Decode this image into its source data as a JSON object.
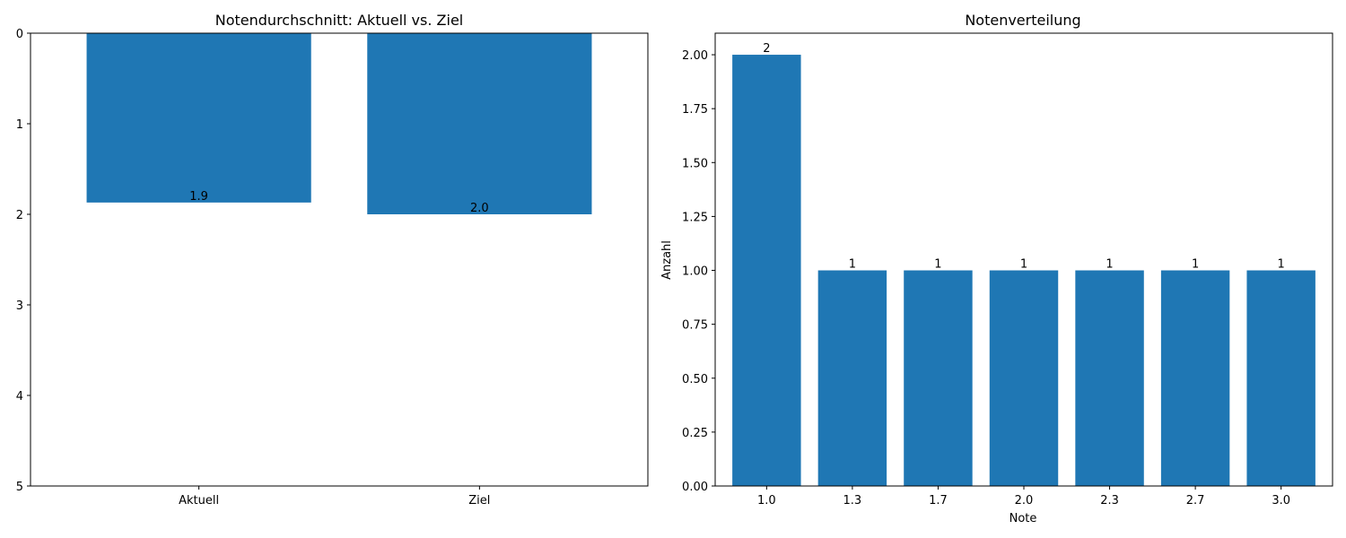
{
  "chart_data": [
    {
      "type": "bar",
      "title": "Notendurchschnitt: Aktuell vs. Ziel",
      "xlabel": "",
      "ylabel": "",
      "categories": [
        "Aktuell",
        "Ziel"
      ],
      "values": [
        1.87,
        2.0
      ],
      "value_labels": [
        "1.9",
        "2.0"
      ],
      "ylim": [
        0,
        5
      ],
      "y_inverted": true,
      "yticks": [
        "0",
        "1",
        "2",
        "3",
        "4",
        "5"
      ],
      "grid": false,
      "legend": "none",
      "bar_color": "#1f77b4"
    },
    {
      "type": "bar",
      "title": "Notenverteilung",
      "xlabel": "Note",
      "ylabel": "Anzahl",
      "categories": [
        "1.0",
        "1.3",
        "1.7",
        "2.0",
        "2.3",
        "2.7",
        "3.0"
      ],
      "values": [
        2,
        1,
        1,
        1,
        1,
        1,
        1
      ],
      "value_labels": [
        "2",
        "1",
        "1",
        "1",
        "1",
        "1",
        "1"
      ],
      "ylim": [
        0,
        2.1
      ],
      "yticks": [
        "0.00",
        "0.25",
        "0.50",
        "0.75",
        "1.00",
        "1.25",
        "1.50",
        "1.75",
        "2.00"
      ],
      "grid": false,
      "legend": "none",
      "bar_color": "#1f77b4"
    }
  ]
}
